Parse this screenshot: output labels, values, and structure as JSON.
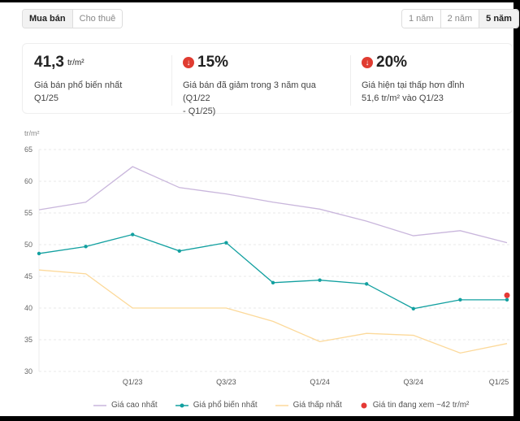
{
  "tabs": {
    "items": [
      "Mua bán",
      "Cho thuê"
    ],
    "active": 0
  },
  "range": {
    "items": [
      "1 năm",
      "2 năm",
      "5 năm"
    ],
    "active": 2
  },
  "stats": [
    {
      "value": "41,3",
      "unit": "tr/m²",
      "desc1": "Giá bán phổ biến nhất",
      "desc2": "Q1/25"
    },
    {
      "value": "15%",
      "icon": "arrow-down-circle-icon",
      "desc1": "Giá bán đã giảm trong 3 năm qua (Q1/22",
      "desc2": "- Q1/25)"
    },
    {
      "value": "20%",
      "icon": "arrow-down-circle-icon",
      "desc1": "Giá hiện tại thấp hơn đỉnh",
      "desc2": "51,6 tr/m² vào Q1/23"
    }
  ],
  "chart_data": {
    "type": "line",
    "ylabel": "tr/m²",
    "ylim": [
      30,
      65
    ],
    "yticks": [
      65,
      60,
      55,
      50,
      45,
      40,
      35,
      30
    ],
    "xtick_labels": [
      "",
      "",
      "Q1/23",
      "",
      "Q3/23",
      "",
      "Q1/24",
      "",
      "Q3/24",
      "",
      "Q1/25"
    ],
    "grid": true,
    "legend_position": "bottom",
    "series": [
      {
        "name": "Giá cao nhất",
        "color": "#c9b6dc",
        "markers": false,
        "values": [
          55.5,
          56.7,
          62.3,
          59,
          58,
          56.7,
          55.6,
          53.7,
          51.4,
          52.2,
          50.3
        ]
      },
      {
        "name": "Giá phổ biến nhất",
        "color": "#12a0a0",
        "markers": true,
        "values": [
          48.6,
          49.7,
          51.6,
          49,
          50.3,
          44,
          44.4,
          43.8,
          39.9,
          41.3,
          41.3
        ]
      },
      {
        "name": "Giá thấp nhất",
        "color": "#fcd99a",
        "markers": false,
        "values": [
          46,
          45.4,
          40,
          40,
          40,
          37.9,
          34.7,
          36,
          35.7,
          32.9,
          34.4
        ]
      }
    ],
    "highlight": {
      "name": "Giá tin đang xem ~42 tr/m²",
      "color": "#e53935",
      "index": 10,
      "value": 42
    }
  }
}
